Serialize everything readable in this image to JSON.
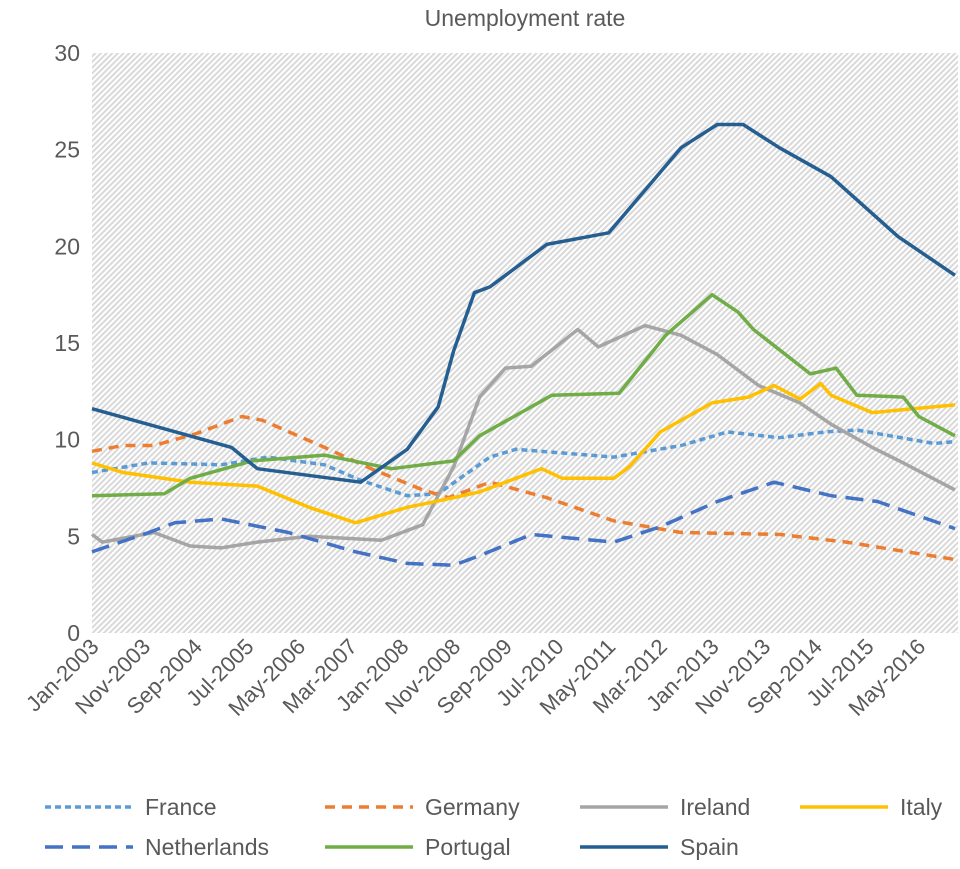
{
  "chart_data": {
    "type": "line",
    "title": "Unemployment rate",
    "xlabel": "",
    "ylabel": "",
    "ylim": [
      0,
      30
    ],
    "yticks": [
      0,
      5,
      10,
      15,
      20,
      25,
      30
    ],
    "x_unit": "months since Jan-2003",
    "xlim": [
      0,
      167
    ],
    "xtick_positions": [
      0,
      10,
      20,
      30,
      40,
      50,
      60,
      70,
      80,
      90,
      100,
      110,
      120,
      130,
      140,
      150,
      160
    ],
    "xtick_labels": [
      "Jan-2003",
      "Nov-2003",
      "Sep-2004",
      "Jul-2005",
      "May-2006",
      "Mar-2007",
      "Jan-2008",
      "Nov-2008",
      "Sep-2009",
      "Jul-2010",
      "May-2011",
      "Mar-2012",
      "Jan-2013",
      "Nov-2013",
      "Sep-2014",
      "Jul-2015",
      "May-2016"
    ],
    "grid": false,
    "legend_position": "bottom",
    "series": [
      {
        "name": "France",
        "color": "#5B9BD5",
        "style": "short-dash",
        "points": [
          [
            0,
            8.3
          ],
          [
            11,
            8.8
          ],
          [
            25,
            8.7
          ],
          [
            34,
            9.1
          ],
          [
            45,
            8.7
          ],
          [
            52,
            7.9
          ],
          [
            61,
            7.1
          ],
          [
            67,
            7.2
          ],
          [
            77,
            9.1
          ],
          [
            82,
            9.5
          ],
          [
            101,
            9.1
          ],
          [
            114,
            9.7
          ],
          [
            123,
            10.4
          ],
          [
            133,
            10.1
          ],
          [
            142,
            10.4
          ],
          [
            148,
            10.5
          ],
          [
            163,
            9.8
          ],
          [
            167,
            9.9
          ]
        ]
      },
      {
        "name": "Germany",
        "color": "#ED7D31",
        "style": "dash",
        "points": [
          [
            0,
            9.4
          ],
          [
            6,
            9.7
          ],
          [
            12,
            9.7
          ],
          [
            20,
            10.3
          ],
          [
            29,
            11.2
          ],
          [
            33,
            11.0
          ],
          [
            45,
            9.6
          ],
          [
            54,
            8.5
          ],
          [
            64,
            7.4
          ],
          [
            69,
            7.0
          ],
          [
            77,
            7.8
          ],
          [
            88,
            7.0
          ],
          [
            101,
            5.8
          ],
          [
            114,
            5.2
          ],
          [
            133,
            5.1
          ],
          [
            146,
            4.7
          ],
          [
            167,
            3.8
          ]
        ]
      },
      {
        "name": "Ireland",
        "color": "#A5A5A5",
        "style": "solid",
        "points": [
          [
            0,
            5.1
          ],
          [
            2,
            4.7
          ],
          [
            12,
            5.2
          ],
          [
            19,
            4.5
          ],
          [
            25,
            4.4
          ],
          [
            32,
            4.7
          ],
          [
            42,
            5.0
          ],
          [
            56,
            4.8
          ],
          [
            64,
            5.6
          ],
          [
            70,
            8.6
          ],
          [
            75,
            12.2
          ],
          [
            80,
            13.7
          ],
          [
            85,
            13.8
          ],
          [
            94,
            15.7
          ],
          [
            98,
            14.8
          ],
          [
            107,
            15.9
          ],
          [
            114,
            15.4
          ],
          [
            121,
            14.4
          ],
          [
            129,
            12.8
          ],
          [
            137,
            11.9
          ],
          [
            143,
            10.8
          ],
          [
            151,
            9.6
          ],
          [
            157,
            8.8
          ],
          [
            167,
            7.4
          ]
        ]
      },
      {
        "name": "Italy",
        "color": "#FFC000",
        "style": "solid",
        "points": [
          [
            0,
            8.8
          ],
          [
            6,
            8.3
          ],
          [
            19,
            7.8
          ],
          [
            32,
            7.6
          ],
          [
            42,
            6.5
          ],
          [
            51,
            5.7
          ],
          [
            61,
            6.5
          ],
          [
            70,
            7.0
          ],
          [
            75,
            7.3
          ],
          [
            87,
            8.5
          ],
          [
            91,
            8.0
          ],
          [
            101,
            8.0
          ],
          [
            104,
            8.6
          ],
          [
            110,
            10.4
          ],
          [
            120,
            11.9
          ],
          [
            127,
            12.2
          ],
          [
            132,
            12.8
          ],
          [
            137,
            12.1
          ],
          [
            141,
            12.9
          ],
          [
            143,
            12.3
          ],
          [
            151,
            11.4
          ],
          [
            167,
            11.8
          ]
        ]
      },
      {
        "name": "Netherlands",
        "color": "#4472C4",
        "style": "long-dash",
        "points": [
          [
            0,
            4.2
          ],
          [
            11,
            5.2
          ],
          [
            16,
            5.7
          ],
          [
            25,
            5.9
          ],
          [
            38,
            5.2
          ],
          [
            51,
            4.2
          ],
          [
            61,
            3.6
          ],
          [
            70,
            3.5
          ],
          [
            75,
            4.0
          ],
          [
            85,
            5.1
          ],
          [
            101,
            4.7
          ],
          [
            110,
            5.5
          ],
          [
            121,
            6.8
          ],
          [
            132,
            7.8
          ],
          [
            143,
            7.1
          ],
          [
            152,
            6.8
          ],
          [
            167,
            5.4
          ]
        ]
      },
      {
        "name": "Portugal",
        "color": "#70AD47",
        "style": "solid",
        "points": [
          [
            0,
            7.1
          ],
          [
            14,
            7.2
          ],
          [
            19,
            8.0
          ],
          [
            31,
            8.9
          ],
          [
            45,
            9.2
          ],
          [
            58,
            8.5
          ],
          [
            70,
            8.9
          ],
          [
            75,
            10.2
          ],
          [
            89,
            12.3
          ],
          [
            102,
            12.4
          ],
          [
            111,
            15.4
          ],
          [
            120,
            17.5
          ],
          [
            125,
            16.6
          ],
          [
            128,
            15.7
          ],
          [
            139,
            13.4
          ],
          [
            144,
            13.7
          ],
          [
            148,
            12.3
          ],
          [
            157,
            12.2
          ],
          [
            160,
            11.2
          ],
          [
            167,
            10.2
          ]
        ]
      },
      {
        "name": "Spain",
        "color": "#255E91",
        "style": "solid",
        "points": [
          [
            0,
            11.6
          ],
          [
            27,
            9.6
          ],
          [
            32,
            8.5
          ],
          [
            52,
            7.8
          ],
          [
            61,
            9.5
          ],
          [
            67,
            11.7
          ],
          [
            70,
            14.6
          ],
          [
            74,
            17.6
          ],
          [
            77,
            17.9
          ],
          [
            88,
            20.1
          ],
          [
            100,
            20.7
          ],
          [
            114,
            25.1
          ],
          [
            121,
            26.3
          ],
          [
            126,
            26.3
          ],
          [
            133,
            25.1
          ],
          [
            143,
            23.6
          ],
          [
            156,
            20.5
          ],
          [
            167,
            18.5
          ]
        ]
      }
    ]
  }
}
